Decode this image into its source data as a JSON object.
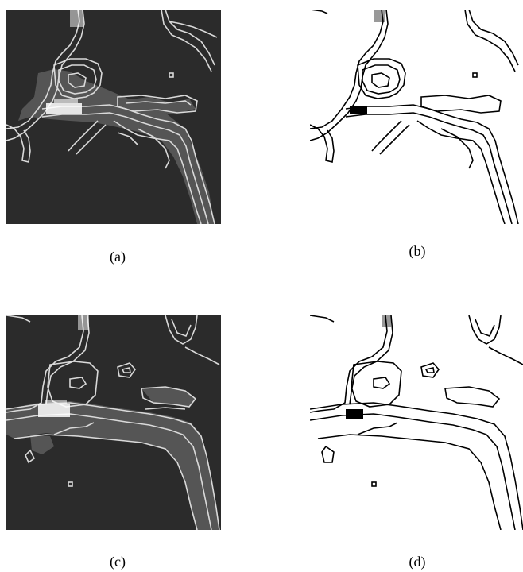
{
  "figure": {
    "panels": [
      {
        "id": "a",
        "caption": "(a)",
        "style": "dark"
      },
      {
        "id": "b",
        "caption": "(b)",
        "style": "light"
      },
      {
        "id": "c",
        "caption": "(c)",
        "style": "dark"
      },
      {
        "id": "d",
        "caption": "(d)",
        "style": "light"
      }
    ],
    "colors": {
      "dark_background": "#2b2b2b",
      "dark_region": "#555555",
      "dark_contour": "#d9d9d9",
      "dark_highlight": "#ffffff",
      "light_background": "#ffffff",
      "light_contour": "#000000"
    }
  }
}
